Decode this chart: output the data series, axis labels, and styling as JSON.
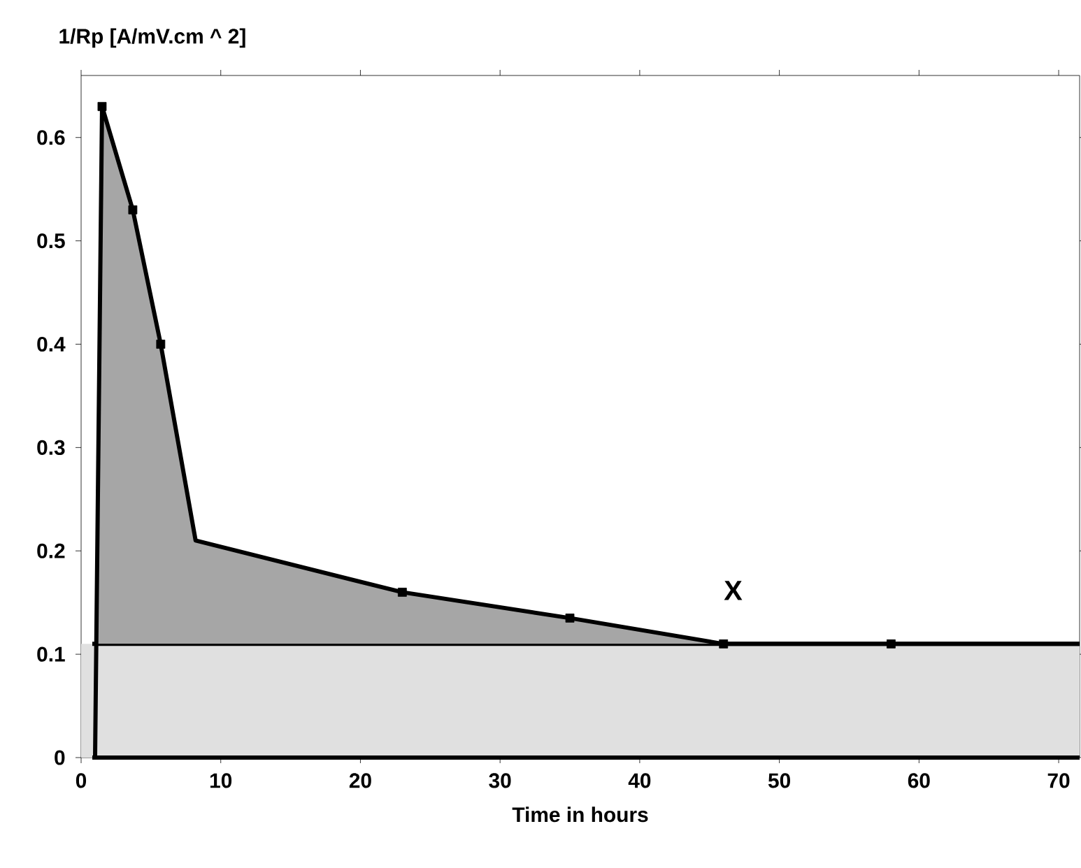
{
  "chart_data": {
    "type": "area",
    "xlabel": "Time in hours",
    "ylabel": "1/Rp  [A/mV.cm ^ 2]",
    "series": [
      {
        "color": "#000000",
        "x": [
          1,
          1.5,
          3.7,
          5.7,
          8.2,
          23,
          35,
          46,
          58,
          71.5
        ],
        "values": [
          0,
          0.63,
          0.53,
          0.4,
          0.21,
          0.16,
          0.135,
          0.11,
          0.11,
          0.11
        ]
      },
      {
        "type": "scatter",
        "color": "#000000",
        "marker": "square",
        "x": [
          1.5,
          3.7,
          5.7,
          23,
          35,
          46,
          58
        ],
        "values": [
          0.63,
          0.53,
          0.4,
          0.16,
          0.135,
          0.11,
          0.11
        ]
      }
    ],
    "xlim": [
      0,
      71.5
    ],
    "ylim": [
      0,
      0.66
    ],
    "xticks": [
      0,
      10,
      20,
      30,
      40,
      50,
      60,
      70
    ],
    "yticks": [
      0,
      0.1,
      0.2,
      0.3,
      0.4,
      0.5,
      0.6
    ],
    "bands": [
      {
        "axis": "y",
        "from": 0,
        "to": 0.11,
        "color": "#e0e0e0"
      }
    ],
    "annotations": [
      "X"
    ],
    "grid": false
  }
}
